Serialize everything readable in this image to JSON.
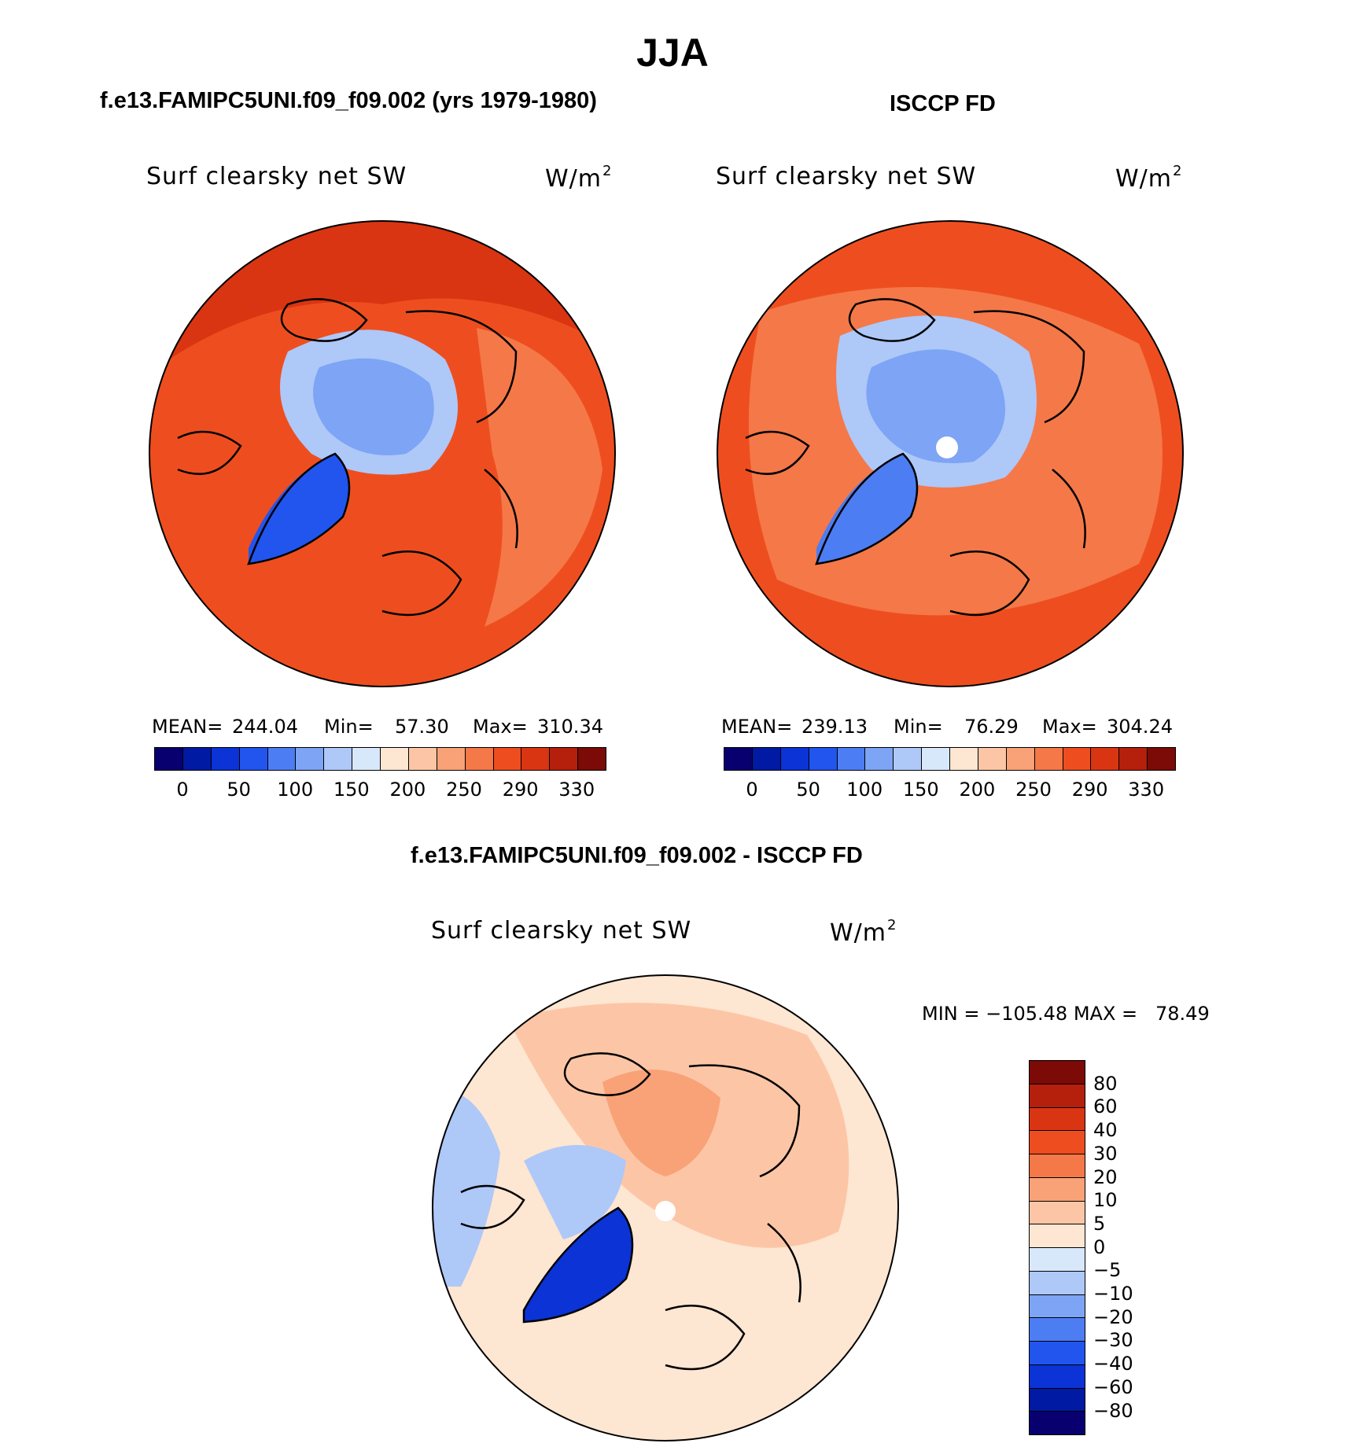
{
  "figure": {
    "season": "JJA",
    "variable_label": "Surf clearsky net SW",
    "units_base": "W/m",
    "units_exp": "2"
  },
  "panels": {
    "model": {
      "title": "f.e13.FAMIPC5UNI.f09_f09.002 (yrs 1979-1980)",
      "mean_label": "MEAN=",
      "mean": "244.04",
      "min_label": "Min=",
      "min": "57.30",
      "max_label": "Max=",
      "max": "310.34"
    },
    "obs": {
      "title": "ISCCP FD",
      "mean_label": "MEAN=",
      "mean": "239.13",
      "min_label": "Min=",
      "min": "76.29",
      "max_label": "Max=",
      "max": "304.24"
    },
    "diff": {
      "title": "f.e13.FAMIPC5UNI.f09_f09.002 - ISCCP FD",
      "minmax_text": "MIN = −105.48 MAX =   78.49"
    }
  },
  "abs_colorbar": {
    "colors": [
      "#08006e",
      "#001aa3",
      "#0b33d6",
      "#2255ee",
      "#4d7df2",
      "#7da4f5",
      "#aec8f8",
      "#d8e8fb",
      "#fde6d2",
      "#fcc6a6",
      "#f9a277",
      "#f57848",
      "#ee4e1f",
      "#d93512",
      "#b5200c",
      "#7c0a06"
    ],
    "tick_labels": [
      "0",
      "50",
      "100",
      "150",
      "200",
      "250",
      "290",
      "330"
    ]
  },
  "diff_colorbar": {
    "colors": [
      "#7c0a06",
      "#b5200c",
      "#d93512",
      "#ee4e1f",
      "#f57848",
      "#f9a277",
      "#fcc6a6",
      "#fde6d2",
      "#d8e8fb",
      "#aec8f8",
      "#7da4f5",
      "#4d7df2",
      "#2255ee",
      "#0b33d6",
      "#001aa3",
      "#08006e"
    ],
    "tick_labels": [
      "80",
      "60",
      "40",
      "30",
      "20",
      "10",
      "5",
      "0",
      "−5",
      "−10",
      "−20",
      "−30",
      "−40",
      "−60",
      "−80"
    ]
  },
  "map_colors": {
    "ocean_warm": "#ee4e1f",
    "ocean_hot": "#d93512",
    "land_warm": "#f57848",
    "ice_cool": "#aec8f8",
    "ice_mid": "#7da4f5",
    "greenland_model": "#2255ee",
    "greenland_obs": "#4d7df2",
    "diff_bg": "#fde6d2",
    "diff_pos": "#fcc6a6",
    "diff_pos_strong": "#f9a277",
    "diff_neg": "#aec8f8",
    "diff_neg_strong": "#0b33d6"
  }
}
